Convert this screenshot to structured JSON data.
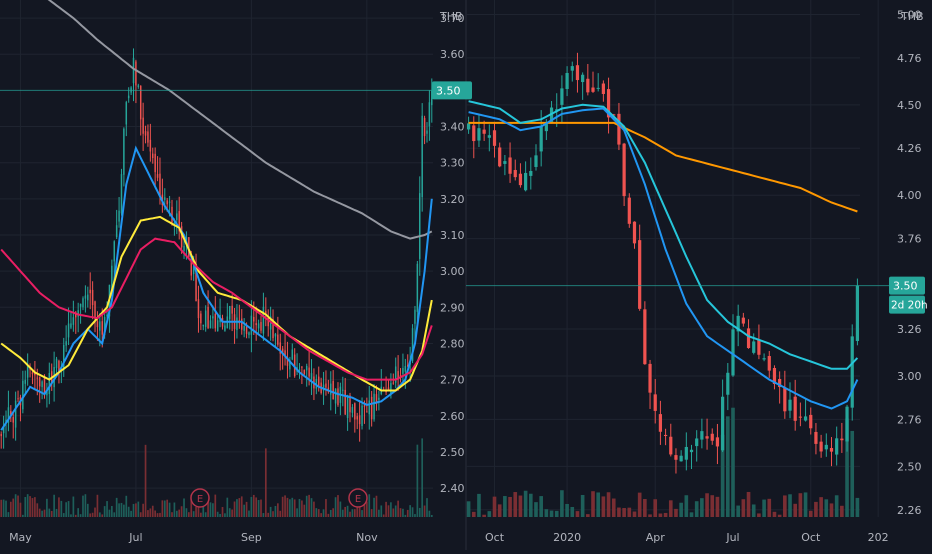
{
  "colors": {
    "background": "#131722",
    "grid": "#1f2430",
    "up": "#26a69a",
    "down": "#ef5350",
    "vol_up": "#1e5f5a",
    "vol_down": "#7a2e33",
    "axis_text": "#b2b5be",
    "ma_gray": "#9598a1",
    "ma_blue": "#2196f3",
    "ma_yellow": "#ffeb3b",
    "ma_red": "#e91e63",
    "ma_orange": "#ff9800",
    "ma_cyan": "#26c6da",
    "price_line": "#26a69a",
    "earnings_circle": "#b2344a"
  },
  "chart_data": [
    {
      "type": "candlestick",
      "currency_label": "THB",
      "last_price_label": "3.50",
      "last_price": 3.5,
      "earnings_marker_label": "E",
      "earnings_markers_at": [
        "Aug",
        "Nov"
      ],
      "ylim": [
        2.32,
        3.75
      ],
      "y_ticks": [
        "3.70",
        "3.60",
        "3.40",
        "3.30",
        "3.20",
        "3.10",
        "3.00",
        "2.90",
        "2.80",
        "2.70",
        "2.60",
        "2.50",
        "2.40"
      ],
      "x_tick_labels": [
        "May",
        "Jul",
        "Sep",
        "Nov"
      ],
      "x_tick_idx": [
        8,
        56,
        104,
        152
      ],
      "n_bars": 180,
      "price_anchors": [
        [
          0,
          2.56
        ],
        [
          6,
          2.62
        ],
        [
          12,
          2.74
        ],
        [
          18,
          2.66
        ],
        [
          24,
          2.74
        ],
        [
          30,
          2.88
        ],
        [
          36,
          2.92
        ],
        [
          42,
          2.82
        ],
        [
          48,
          3.1
        ],
        [
          52,
          3.48
        ],
        [
          55,
          3.56
        ],
        [
          60,
          3.36
        ],
        [
          64,
          3.3
        ],
        [
          68,
          3.18
        ],
        [
          72,
          3.14
        ],
        [
          78,
          3.06
        ],
        [
          82,
          2.9
        ],
        [
          88,
          2.84
        ],
        [
          94,
          2.88
        ],
        [
          100,
          2.86
        ],
        [
          106,
          2.84
        ],
        [
          110,
          2.88
        ],
        [
          116,
          2.8
        ],
        [
          122,
          2.74
        ],
        [
          130,
          2.68
        ],
        [
          136,
          2.7
        ],
        [
          142,
          2.64
        ],
        [
          148,
          2.6
        ],
        [
          154,
          2.62
        ],
        [
          160,
          2.68
        ],
        [
          166,
          2.72
        ],
        [
          170,
          2.74
        ],
        [
          173,
          3.0
        ],
        [
          175,
          3.4
        ],
        [
          177,
          3.38
        ],
        [
          179,
          3.5
        ]
      ],
      "moving_averages": [
        {
          "color": "gray",
          "points": [
            [
              18,
              3.76
            ],
            [
              30,
              3.7
            ],
            [
              40,
              3.64
            ],
            [
              55,
              3.56
            ],
            [
              70,
              3.5
            ],
            [
              90,
              3.4
            ],
            [
              110,
              3.3
            ],
            [
              130,
              3.22
            ],
            [
              150,
              3.16
            ],
            [
              162,
              3.11
            ],
            [
              170,
              3.09
            ],
            [
              176,
              3.1
            ],
            [
              179,
              3.11
            ]
          ]
        },
        {
          "color": "blue",
          "points": [
            [
              0,
              2.56
            ],
            [
              6,
              2.62
            ],
            [
              12,
              2.68
            ],
            [
              18,
              2.66
            ],
            [
              24,
              2.72
            ],
            [
              30,
              2.8
            ],
            [
              36,
              2.84
            ],
            [
              42,
              2.8
            ],
            [
              46,
              2.92
            ],
            [
              52,
              3.24
            ],
            [
              56,
              3.34
            ],
            [
              62,
              3.26
            ],
            [
              68,
              3.18
            ],
            [
              76,
              3.1
            ],
            [
              84,
              2.94
            ],
            [
              92,
              2.86
            ],
            [
              100,
              2.86
            ],
            [
              108,
              2.82
            ],
            [
              116,
              2.78
            ],
            [
              124,
              2.72
            ],
            [
              132,
              2.68
            ],
            [
              140,
              2.66
            ],
            [
              146,
              2.65
            ],
            [
              152,
              2.63
            ],
            [
              158,
              2.64
            ],
            [
              164,
              2.67
            ],
            [
              168,
              2.7
            ],
            [
              172,
              2.8
            ],
            [
              176,
              3.0
            ],
            [
              179,
              3.2
            ]
          ]
        },
        {
          "color": "yellow",
          "points": [
            [
              0,
              2.8
            ],
            [
              8,
              2.76
            ],
            [
              14,
              2.72
            ],
            [
              20,
              2.7
            ],
            [
              28,
              2.74
            ],
            [
              36,
              2.84
            ],
            [
              44,
              2.9
            ],
            [
              50,
              3.04
            ],
            [
              58,
              3.14
            ],
            [
              66,
              3.15
            ],
            [
              74,
              3.12
            ],
            [
              82,
              3.0
            ],
            [
              90,
              2.94
            ],
            [
              100,
              2.92
            ],
            [
              110,
              2.88
            ],
            [
              120,
              2.82
            ],
            [
              130,
              2.78
            ],
            [
              140,
              2.74
            ],
            [
              150,
              2.7
            ],
            [
              158,
              2.67
            ],
            [
              164,
              2.67
            ],
            [
              170,
              2.7
            ],
            [
              175,
              2.78
            ],
            [
              179,
              2.92
            ]
          ]
        },
        {
          "color": "red",
          "points": [
            [
              0,
              3.06
            ],
            [
              8,
              3.0
            ],
            [
              16,
              2.94
            ],
            [
              24,
              2.9
            ],
            [
              32,
              2.88
            ],
            [
              40,
              2.87
            ],
            [
              46,
              2.9
            ],
            [
              52,
              2.98
            ],
            [
              58,
              3.06
            ],
            [
              64,
              3.09
            ],
            [
              72,
              3.08
            ],
            [
              80,
              3.02
            ],
            [
              88,
              2.97
            ],
            [
              96,
              2.94
            ],
            [
              104,
              2.9
            ],
            [
              112,
              2.86
            ],
            [
              120,
              2.82
            ],
            [
              128,
              2.78
            ],
            [
              136,
              2.75
            ],
            [
              144,
              2.72
            ],
            [
              152,
              2.7
            ],
            [
              158,
              2.7
            ],
            [
              164,
              2.7
            ],
            [
              170,
              2.72
            ],
            [
              175,
              2.77
            ],
            [
              179,
              2.85
            ]
          ]
        }
      ]
    },
    {
      "type": "candlestick",
      "currency_label": "THB",
      "last_price_label": "3.50",
      "countdown_label": "2d 20h",
      "last_price": 3.5,
      "ylim": [
        2.22,
        5.08
      ],
      "y_ticks": [
        "5.00",
        "4.76",
        "4.50",
        "4.26",
        "4.00",
        "3.76",
        "3.26",
        "3.00",
        "2.76",
        "2.50",
        "2.26"
      ],
      "x_tick_labels": [
        "Oct",
        "2020",
        "Apr",
        "Jul",
        "Oct",
        "202"
      ],
      "x_tick_idx": [
        5,
        19,
        36,
        51,
        66,
        79
      ],
      "n_bars": 76,
      "price_anchors": [
        [
          0,
          4.38
        ],
        [
          2,
          4.36
        ],
        [
          4,
          4.32
        ],
        [
          6,
          4.18
        ],
        [
          8,
          4.12
        ],
        [
          10,
          4.1
        ],
        [
          12,
          4.18
        ],
        [
          14,
          4.36
        ],
        [
          16,
          4.44
        ],
        [
          18,
          4.52
        ],
        [
          20,
          4.7
        ],
        [
          22,
          4.64
        ],
        [
          24,
          4.56
        ],
        [
          26,
          4.54
        ],
        [
          28,
          4.4
        ],
        [
          30,
          4.06
        ],
        [
          32,
          3.7
        ],
        [
          34,
          3.06
        ],
        [
          36,
          2.8
        ],
        [
          38,
          2.62
        ],
        [
          40,
          2.56
        ],
        [
          42,
          2.58
        ],
        [
          44,
          2.7
        ],
        [
          46,
          2.64
        ],
        [
          48,
          2.6
        ],
        [
          50,
          3.04
        ],
        [
          52,
          3.4
        ],
        [
          54,
          3.22
        ],
        [
          56,
          3.12
        ],
        [
          58,
          2.98
        ],
        [
          60,
          2.9
        ],
        [
          62,
          2.82
        ],
        [
          64,
          2.78
        ],
        [
          66,
          2.72
        ],
        [
          68,
          2.64
        ],
        [
          70,
          2.62
        ],
        [
          72,
          2.66
        ],
        [
          73,
          2.86
        ],
        [
          75,
          3.52
        ]
      ],
      "moving_averages": [
        {
          "color": "orange",
          "points": [
            [
              0,
              4.4
            ],
            [
              10,
              4.4
            ],
            [
              20,
              4.4
            ],
            [
              28,
              4.4
            ],
            [
              34,
              4.32
            ],
            [
              40,
              4.22
            ],
            [
              48,
              4.16
            ],
            [
              56,
              4.1
            ],
            [
              64,
              4.04
            ],
            [
              70,
              3.96
            ],
            [
              75,
              3.91
            ]
          ]
        },
        {
          "color": "cyan",
          "points": [
            [
              0,
              4.52
            ],
            [
              6,
              4.48
            ],
            [
              10,
              4.4
            ],
            [
              14,
              4.42
            ],
            [
              18,
              4.48
            ],
            [
              22,
              4.5
            ],
            [
              26,
              4.49
            ],
            [
              30,
              4.38
            ],
            [
              34,
              4.18
            ],
            [
              38,
              3.92
            ],
            [
              42,
              3.66
            ],
            [
              46,
              3.42
            ],
            [
              50,
              3.3
            ],
            [
              54,
              3.22
            ],
            [
              58,
              3.18
            ],
            [
              62,
              3.12
            ],
            [
              66,
              3.08
            ],
            [
              70,
              3.04
            ],
            [
              73,
              3.04
            ],
            [
              75,
              3.1
            ]
          ]
        },
        {
          "color": "blue",
          "points": [
            [
              0,
              4.46
            ],
            [
              6,
              4.42
            ],
            [
              10,
              4.36
            ],
            [
              14,
              4.38
            ],
            [
              18,
              4.45
            ],
            [
              22,
              4.47
            ],
            [
              26,
              4.48
            ],
            [
              30,
              4.36
            ],
            [
              34,
              4.06
            ],
            [
              38,
              3.7
            ],
            [
              42,
              3.4
            ],
            [
              46,
              3.22
            ],
            [
              50,
              3.14
            ],
            [
              54,
              3.06
            ],
            [
              58,
              2.98
            ],
            [
              62,
              2.92
            ],
            [
              66,
              2.86
            ],
            [
              70,
              2.82
            ],
            [
              73,
              2.86
            ],
            [
              75,
              2.98
            ]
          ]
        }
      ]
    }
  ]
}
